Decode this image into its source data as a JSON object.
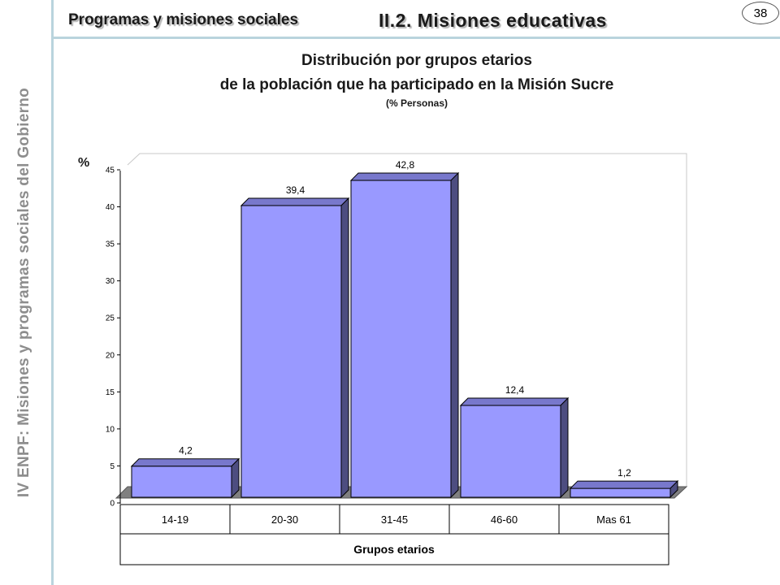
{
  "sidebar": {
    "vertical_title": "IV ENPF:  Misiones y programas sociales del Gobierno"
  },
  "header": {
    "section": "Programas y misiones sociales",
    "subsection": "II.2. Misiones educativas",
    "page_number": "38"
  },
  "colors": {
    "bar_front": "#9999ff",
    "bar_top": "#7878cc",
    "bar_side": "#4d4d80",
    "floor": "#808080",
    "accent_rule": "#b9d4dd"
  },
  "chart_data": {
    "type": "bar",
    "title_line1": "Distribución por grupos etarios",
    "title_line2": "de la población que ha participado en la Misión Sucre",
    "subtitle": "(% Personas)",
    "ylabel": "%",
    "xlabel": "Grupos etarios",
    "categories": [
      "14-19",
      "20-30",
      "31-45",
      "46-60",
      "Mas 61"
    ],
    "values": [
      4.2,
      39.4,
      42.8,
      12.4,
      1.2
    ],
    "value_labels": [
      "4,2",
      "39,4",
      "42,8",
      "12,4",
      "1,2"
    ],
    "ylim": [
      0,
      45
    ],
    "yticks": [
      0,
      5,
      10,
      15,
      20,
      25,
      30,
      35,
      40,
      45
    ],
    "grid": false,
    "legend": "none"
  }
}
